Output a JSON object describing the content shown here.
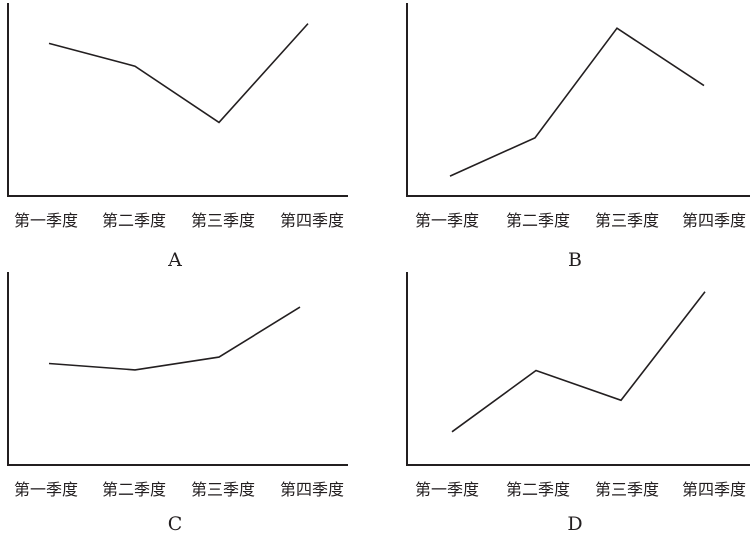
{
  "chart_data": [
    {
      "type": "line",
      "panel_label": "A",
      "categories": [
        "第一季度",
        "第二季度",
        "第三季度",
        "第四季度"
      ],
      "values": [
        82,
        67,
        30,
        95
      ],
      "ylim": [
        0,
        100
      ],
      "grid": false,
      "y_ticks_shown": false
    },
    {
      "type": "line",
      "panel_label": "B",
      "categories": [
        "第一季度",
        "第二季度",
        "第三季度",
        "第四季度"
      ],
      "values": [
        8,
        30,
        93,
        60
      ],
      "ylim": [
        0,
        100
      ],
      "grid": false,
      "y_ticks_shown": false
    },
    {
      "type": "line",
      "panel_label": "C",
      "categories": [
        "第一季度",
        "第二季度",
        "第三季度",
        "第四季度"
      ],
      "values": [
        50,
        46,
        54,
        85
      ],
      "ylim": [
        0,
        100
      ],
      "grid": false,
      "y_ticks_shown": false
    },
    {
      "type": "line",
      "panel_label": "D",
      "categories": [
        "第一季度",
        "第二季度",
        "第三季度",
        "第四季度"
      ],
      "values": [
        15,
        50,
        33,
        95
      ],
      "ylim": [
        0,
        100
      ],
      "grid": false,
      "y_ticks_shown": false
    }
  ]
}
